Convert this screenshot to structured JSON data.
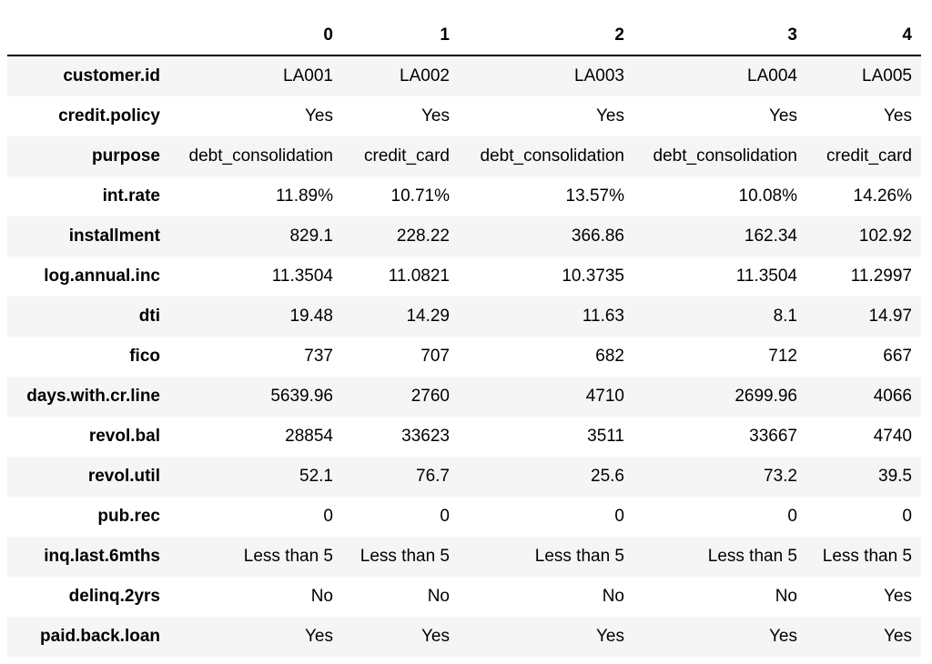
{
  "table": {
    "columns": [
      "0",
      "1",
      "2",
      "3",
      "4"
    ],
    "rows": [
      {
        "label": "customer.id",
        "values": [
          "LA001",
          "LA002",
          "LA003",
          "LA004",
          "LA005"
        ]
      },
      {
        "label": "credit.policy",
        "values": [
          "Yes",
          "Yes",
          "Yes",
          "Yes",
          "Yes"
        ]
      },
      {
        "label": "purpose",
        "values": [
          "debt_consolidation",
          "credit_card",
          "debt_consolidation",
          "debt_consolidation",
          "credit_card"
        ]
      },
      {
        "label": "int.rate",
        "values": [
          "11.89%",
          "10.71%",
          "13.57%",
          "10.08%",
          "14.26%"
        ]
      },
      {
        "label": "installment",
        "values": [
          "829.1",
          "228.22",
          "366.86",
          "162.34",
          "102.92"
        ]
      },
      {
        "label": "log.annual.inc",
        "values": [
          "11.3504",
          "11.0821",
          "10.3735",
          "11.3504",
          "11.2997"
        ]
      },
      {
        "label": "dti",
        "values": [
          "19.48",
          "14.29",
          "11.63",
          "8.1",
          "14.97"
        ]
      },
      {
        "label": "fico",
        "values": [
          "737",
          "707",
          "682",
          "712",
          "667"
        ]
      },
      {
        "label": "days.with.cr.line",
        "values": [
          "5639.96",
          "2760",
          "4710",
          "2699.96",
          "4066"
        ]
      },
      {
        "label": "revol.bal",
        "values": [
          "28854",
          "33623",
          "3511",
          "33667",
          "4740"
        ]
      },
      {
        "label": "revol.util",
        "values": [
          "52.1",
          "76.7",
          "25.6",
          "73.2",
          "39.5"
        ]
      },
      {
        "label": "pub.rec",
        "values": [
          "0",
          "0",
          "0",
          "0",
          "0"
        ]
      },
      {
        "label": "inq.last.6mths",
        "values": [
          "Less than 5",
          "Less than 5",
          "Less than 5",
          "Less than 5",
          "Less than 5"
        ]
      },
      {
        "label": "delinq.2yrs",
        "values": [
          "No",
          "No",
          "No",
          "No",
          "Yes"
        ]
      },
      {
        "label": "paid.back.loan",
        "values": [
          "Yes",
          "Yes",
          "Yes",
          "Yes",
          "Yes"
        ]
      }
    ]
  }
}
